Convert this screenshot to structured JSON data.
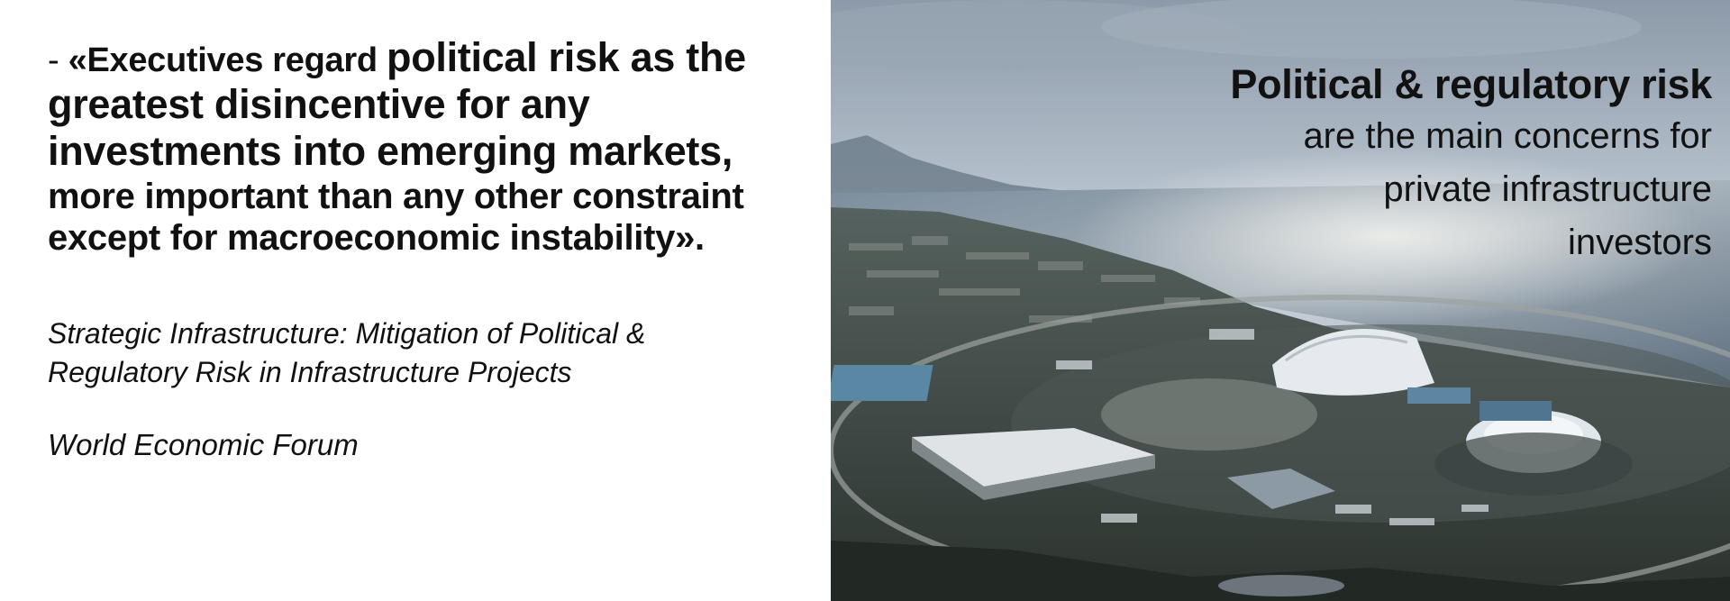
{
  "quote": {
    "dash": "- ",
    "lead": "«Executives regard ",
    "line1_rest": "political risk as the",
    "line2": "greatest disincentive for any",
    "line3": "investments into emerging markets,",
    "line4": "more important than any other constraint",
    "line5": "except for macroeconomic instability»."
  },
  "source": {
    "title": "Strategic Infrastructure: Mitigation of Political & Regulatory Risk in Infrastructure Projects",
    "organization": "World Economic Forum"
  },
  "caption": {
    "title": "Political & regulatory risk",
    "body": "are the main concerns for private infrastructure investors"
  },
  "colors": {
    "text": "#111111",
    "sky": "#b9c4cf",
    "sea": "#6d7f90",
    "land": "#3e4a43"
  },
  "photo": {
    "subject": "aerial-olympic-park-photo"
  }
}
